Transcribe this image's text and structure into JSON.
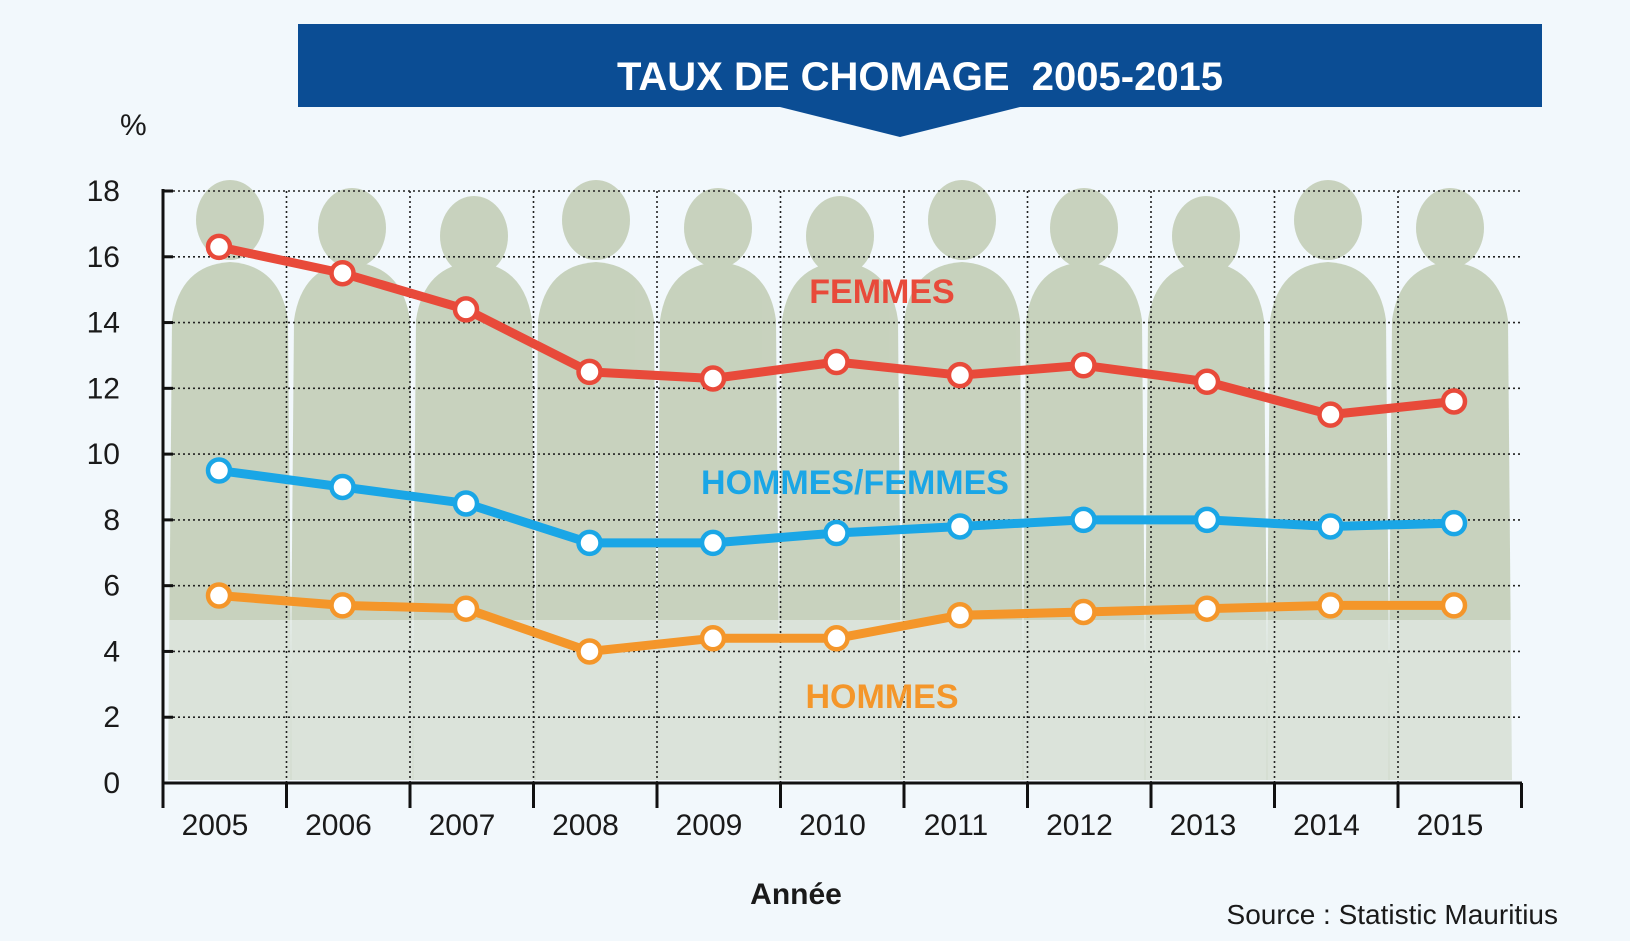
{
  "chart_data": {
    "type": "line",
    "title": "TAUX DE CHOMAGE  2005-2015",
    "ylabel": "%",
    "xlabel": "Année",
    "source": "Source : Statistic Mauritius",
    "categories": [
      "2005",
      "2006",
      "2007",
      "2008",
      "2009",
      "2010",
      "2011",
      "2012",
      "2013",
      "2014",
      "2015"
    ],
    "ylim": [
      0,
      18
    ],
    "yticks": [
      "0",
      "2",
      "4",
      "6",
      "8",
      "10",
      "12",
      "14",
      "16",
      "18"
    ],
    "grid": true,
    "series": [
      {
        "name": "FEMMES",
        "color": "#e84a3a",
        "values": [
          16.3,
          15.5,
          14.4,
          12.5,
          12.3,
          12.8,
          12.4,
          12.7,
          12.2,
          11.2,
          11.6
        ]
      },
      {
        "name": "HOMMES/FEMMES",
        "color": "#1aa6e6",
        "values": [
          9.5,
          9.0,
          8.5,
          7.3,
          7.3,
          7.6,
          7.8,
          8.0,
          8.0,
          7.8,
          7.9
        ]
      },
      {
        "name": "HOMMES",
        "color": "#f4962a",
        "values": [
          5.7,
          5.4,
          5.3,
          4.0,
          4.4,
          4.4,
          5.1,
          5.2,
          5.3,
          5.4,
          5.4
        ]
      }
    ]
  },
  "colors": {
    "banner": "#0b4d94",
    "silhouette": "#b9c6a9"
  }
}
